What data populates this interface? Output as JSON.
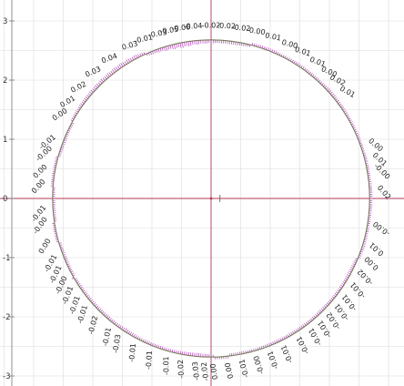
{
  "chart_data": {
    "type": "scatter",
    "title": "",
    "xlabel": "",
    "ylabel": "",
    "y_ticks": [
      {
        "value": 3,
        "label": "3"
      },
      {
        "value": 2,
        "label": "2"
      },
      {
        "value": 1,
        "label": "1"
      },
      {
        "value": 0,
        "label": "0"
      },
      {
        "value": -1,
        "label": "-1"
      },
      {
        "value": -2,
        "label": "-2"
      },
      {
        "value": -3,
        "label": "-3"
      }
    ],
    "circle": {
      "center": [
        0,
        0
      ],
      "radius": 2.68
    },
    "spike_scale": 0.5,
    "labeled_deviations": [
      {
        "angle_deg": 118,
        "label": "0.03",
        "value": 0.03
      },
      {
        "angle_deg": 126,
        "label": "0.04",
        "value": 0.04
      },
      {
        "angle_deg": 133,
        "label": "0.03",
        "value": 0.03
      },
      {
        "angle_deg": 140,
        "label": "0.02",
        "value": 0.02
      },
      {
        "angle_deg": 146,
        "label": "0.01",
        "value": 0.01
      },
      {
        "angle_deg": 151,
        "label": "0.00",
        "value": 0.0
      },
      {
        "angle_deg": 161,
        "label": "-0.01",
        "value": -0.01
      },
      {
        "angle_deg": 165,
        "label": "-0.00",
        "value": -0.0
      },
      {
        "angle_deg": 171,
        "label": "0.00",
        "value": 0.0
      },
      {
        "angle_deg": 176,
        "label": "0.00",
        "value": 0.0
      },
      {
        "angle_deg": 185,
        "label": "-0.01",
        "value": -0.01
      },
      {
        "angle_deg": 189,
        "label": "-0.00",
        "value": -0.0
      },
      {
        "angle_deg": 196,
        "label": "0.00",
        "value": 0.0
      },
      {
        "angle_deg": 202,
        "label": "-0.01",
        "value": -0.01
      },
      {
        "angle_deg": 206,
        "label": "-0.01",
        "value": -0.01
      },
      {
        "angle_deg": 210,
        "label": "-0.00",
        "value": -0.0
      },
      {
        "angle_deg": 214,
        "label": "-0.01",
        "value": -0.01
      },
      {
        "angle_deg": 218,
        "label": "-0.01",
        "value": -0.01
      },
      {
        "angle_deg": 222,
        "label": "-0.01",
        "value": -0.01
      },
      {
        "angle_deg": 227,
        "label": "-0.02",
        "value": -0.02
      },
      {
        "angle_deg": 233,
        "label": "-0.01",
        "value": -0.01
      },
      {
        "angle_deg": 237,
        "label": "-0.03",
        "value": -0.03
      },
      {
        "angle_deg": 243,
        "label": "-0.01",
        "value": -0.01
      },
      {
        "angle_deg": 249,
        "label": "-0.01",
        "value": -0.01
      },
      {
        "angle_deg": 255,
        "label": "-0.01",
        "value": -0.01
      },
      {
        "angle_deg": 260,
        "label": "-0.02",
        "value": -0.02
      },
      {
        "angle_deg": 265,
        "label": "-0.03",
        "value": -0.03
      },
      {
        "angle_deg": 268,
        "label": "-0.02",
        "value": -0.02
      },
      {
        "angle_deg": 271,
        "label": "0.00",
        "value": 0.0
      },
      {
        "angle_deg": 276,
        "label": "0.00",
        "value": 0.0
      },
      {
        "angle_deg": 281,
        "label": "-0.01",
        "value": -0.01
      },
      {
        "angle_deg": 286,
        "label": "-0.00",
        "value": -0.0
      },
      {
        "angle_deg": 291,
        "label": "-0.01",
        "value": -0.01
      },
      {
        "angle_deg": 296,
        "label": "-0.01",
        "value": -0.01
      },
      {
        "angle_deg": 302,
        "label": "-0.01",
        "value": -0.01
      },
      {
        "angle_deg": 307,
        "label": "-0.01",
        "value": -0.01
      },
      {
        "angle_deg": 311,
        "label": "-0.01",
        "value": -0.01
      },
      {
        "angle_deg": 315,
        "label": "-0.02",
        "value": -0.02
      },
      {
        "angle_deg": 319,
        "label": "-0.01",
        "value": -0.01
      },
      {
        "angle_deg": 323,
        "label": "-0.01",
        "value": -0.01
      },
      {
        "angle_deg": 328,
        "label": "-0.01",
        "value": -0.01
      },
      {
        "angle_deg": 333,
        "label": "-0.02",
        "value": -0.02
      },
      {
        "angle_deg": 338,
        "label": "0.00",
        "value": 0.0
      },
      {
        "angle_deg": 343,
        "label": "0.01",
        "value": 0.01
      },
      {
        "angle_deg": 350,
        "label": "-0.00",
        "value": -0.0
      },
      {
        "angle_deg": 2,
        "label": "0.02",
        "value": 0.02
      },
      {
        "angle_deg": 9,
        "label": "-0.00",
        "value": -0.0
      },
      {
        "angle_deg": 13,
        "label": "0.01",
        "value": 0.01
      },
      {
        "angle_deg": 18,
        "label": "0.00",
        "value": 0.0
      },
      {
        "angle_deg": 38,
        "label": "0.01",
        "value": 0.01
      },
      {
        "angle_deg": 43,
        "label": "0.02",
        "value": 0.02
      },
      {
        "angle_deg": 47,
        "label": "0.00",
        "value": 0.0
      },
      {
        "angle_deg": 52,
        "label": "0.01",
        "value": 0.01
      },
      {
        "angle_deg": 58,
        "label": "0.01",
        "value": 0.01
      },
      {
        "angle_deg": 63,
        "label": "0.00",
        "value": 0.0
      },
      {
        "angle_deg": 69,
        "label": "0.01",
        "value": 0.01
      },
      {
        "angle_deg": 75,
        "label": "-0.00",
        "value": -0.0
      },
      {
        "angle_deg": 80,
        "label": "-0.02",
        "value": -0.02
      },
      {
        "angle_deg": 85,
        "label": "-0.02",
        "value": -0.02
      },
      {
        "angle_deg": 90,
        "label": "-0.02",
        "value": -0.02
      },
      {
        "angle_deg": 96,
        "label": "-0.04",
        "value": -0.04
      },
      {
        "angle_deg": 100,
        "label": "-0.06",
        "value": -0.06
      },
      {
        "angle_deg": 104,
        "label": "-0.05",
        "value": -0.05
      },
      {
        "angle_deg": 108,
        "label": "-0.03",
        "value": -0.03
      },
      {
        "angle_deg": 113,
        "label": "-0.01",
        "value": -0.01
      }
    ],
    "grid": true,
    "colors": {
      "background": "#ffffff",
      "grid": "#dcdcdc",
      "axes": "#b03a5a",
      "circle": "#7a7a5e",
      "spikes": "#b040b8",
      "text": "#222222"
    }
  }
}
